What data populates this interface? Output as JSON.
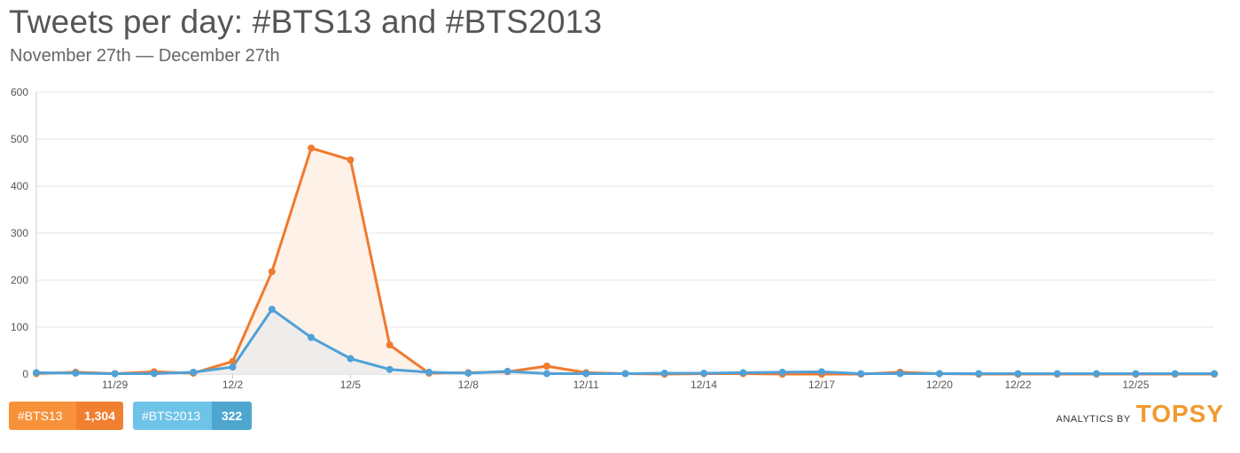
{
  "header": {
    "title": "Tweets per day: #BTS13 and #BTS2013",
    "subtitle": "November 27th — December 27th"
  },
  "legend": [
    {
      "name": "#BTS13",
      "count": "1,304",
      "color": "#f7923a",
      "count_color": "#f07f31"
    },
    {
      "name": "#BTS2013",
      "count": "322",
      "color": "#6ec3e8",
      "count_color": "#4ea6cf"
    }
  ],
  "brand": {
    "prefix": "ANALYTICS BY",
    "logo": "TOPSY",
    "logo_color": "#f29a2e"
  },
  "chart_data": {
    "type": "line",
    "title": "Tweets per day: #BTS13 and #BTS2013",
    "subtitle": "November 27th — December 27th",
    "xlabel": "",
    "ylabel": "",
    "ylim": [
      0,
      600
    ],
    "yticks": [
      0,
      100,
      200,
      300,
      400,
      500,
      600
    ],
    "x": [
      "11/27",
      "11/28",
      "11/29",
      "11/30",
      "12/1",
      "12/2",
      "12/3",
      "12/4",
      "12/5",
      "12/6",
      "12/7",
      "12/8",
      "12/9",
      "12/10",
      "12/11",
      "12/12",
      "12/13",
      "12/14",
      "12/15",
      "12/16",
      "12/17",
      "12/18",
      "12/19",
      "12/20",
      "12/21",
      "12/22",
      "12/23",
      "12/24",
      "12/25",
      "12/26",
      "12/27"
    ],
    "xtick_labels": [
      "11/29",
      "12/2",
      "12/5",
      "12/8",
      "12/11",
      "12/14",
      "12/17",
      "12/20",
      "12/22",
      "12/25"
    ],
    "grid": true,
    "legend_position": "bottom-left",
    "series": [
      {
        "name": "#BTS13",
        "color": "#f07a2e",
        "fill": "#fdf0e6",
        "values": [
          1,
          4,
          1,
          5,
          2,
          27,
          218,
          481,
          456,
          62,
          2,
          3,
          5,
          17,
          3,
          1,
          0,
          1,
          1,
          0,
          0,
          0,
          4,
          1,
          0,
          0,
          0,
          0,
          0,
          0,
          0
        ]
      },
      {
        "name": "#BTS2013",
        "color": "#4fa1d8",
        "fill": "#ececec",
        "values": [
          3,
          2,
          1,
          1,
          4,
          15,
          138,
          78,
          33,
          10,
          4,
          2,
          6,
          1,
          1,
          1,
          2,
          2,
          3,
          4,
          5,
          1,
          1,
          1,
          1,
          1,
          1,
          1,
          1,
          1,
          1
        ]
      }
    ]
  }
}
